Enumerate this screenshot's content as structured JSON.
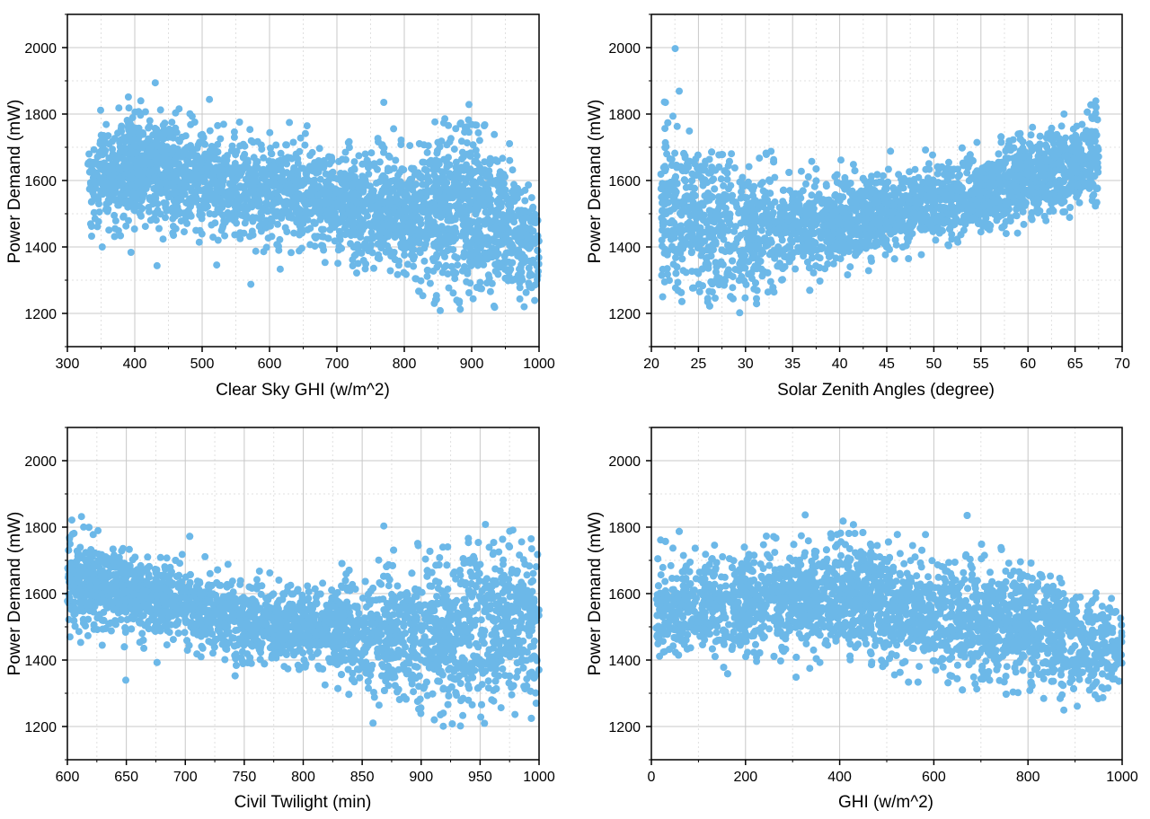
{
  "marker_color": "#6cb8e8",
  "chart_data": [
    {
      "type": "scatter",
      "xlabel": "Clear Sky GHI (w/m^2)",
      "ylabel": "Power Demand (mW)",
      "xlim": [
        300,
        1000
      ],
      "ylim": [
        1100,
        2100
      ],
      "xticks": [
        300,
        400,
        500,
        600,
        700,
        800,
        900,
        1000
      ],
      "yticks": [
        1200,
        1400,
        1600,
        1800,
        2000
      ],
      "grid": true,
      "trend": [
        [
          330,
          1610
        ],
        [
          400,
          1640
        ],
        [
          500,
          1600
        ],
        [
          600,
          1560
        ],
        [
          700,
          1530
        ],
        [
          800,
          1500
        ],
        [
          900,
          1510
        ],
        [
          1000,
          1400
        ]
      ],
      "spread": [
        [
          330,
          120
        ],
        [
          400,
          140
        ],
        [
          500,
          120
        ],
        [
          600,
          110
        ],
        [
          700,
          110
        ],
        [
          800,
          150
        ],
        [
          900,
          200
        ],
        [
          1000,
          110
        ]
      ],
      "density": [
        [
          330,
          0.4
        ],
        [
          400,
          1.0
        ],
        [
          500,
          0.8
        ],
        [
          600,
          0.7
        ],
        [
          700,
          0.75
        ],
        [
          800,
          0.9
        ],
        [
          900,
          1.0
        ],
        [
          1000,
          0.6
        ]
      ]
    },
    {
      "type": "scatter",
      "xlabel": "Solar Zenith Angles (degree)",
      "ylabel": "Power Demand (mW)",
      "xlim": [
        20,
        70
      ],
      "ylim": [
        1100,
        2100
      ],
      "xticks": [
        20,
        25,
        30,
        35,
        40,
        45,
        50,
        55,
        60,
        65,
        70
      ],
      "yticks": [
        1200,
        1400,
        1600,
        1800,
        2000
      ],
      "grid": true,
      "trend": [
        [
          21,
          1520
        ],
        [
          25,
          1480
        ],
        [
          30,
          1450
        ],
        [
          35,
          1450
        ],
        [
          40,
          1480
        ],
        [
          45,
          1500
        ],
        [
          50,
          1530
        ],
        [
          55,
          1560
        ],
        [
          60,
          1600
        ],
        [
          65,
          1640
        ],
        [
          67.5,
          1650
        ]
      ],
      "spread": [
        [
          21,
          180
        ],
        [
          25,
          190
        ],
        [
          30,
          160
        ],
        [
          35,
          120
        ],
        [
          40,
          100
        ],
        [
          45,
          90
        ],
        [
          50,
          90
        ],
        [
          55,
          90
        ],
        [
          60,
          95
        ],
        [
          65,
          110
        ],
        [
          67.5,
          120
        ]
      ],
      "density": [
        [
          21,
          1.0
        ],
        [
          25,
          0.9
        ],
        [
          30,
          0.8
        ],
        [
          35,
          0.8
        ],
        [
          40,
          0.9
        ],
        [
          45,
          0.9
        ],
        [
          50,
          0.9
        ],
        [
          55,
          0.9
        ],
        [
          60,
          1.0
        ],
        [
          65,
          1.0
        ],
        [
          67.5,
          1.0
        ]
      ]
    },
    {
      "type": "scatter",
      "xlabel": "Civil Twilight (min)",
      "ylabel": "Power Demand (mW)",
      "xlim": [
        600,
        1000
      ],
      "ylim": [
        1100,
        2100
      ],
      "xticks": [
        600,
        650,
        700,
        750,
        800,
        850,
        900,
        950,
        1000
      ],
      "yticks": [
        1200,
        1400,
        1600,
        1800,
        2000
      ],
      "grid": true,
      "trend": [
        [
          600,
          1640
        ],
        [
          650,
          1610
        ],
        [
          700,
          1560
        ],
        [
          750,
          1520
        ],
        [
          800,
          1500
        ],
        [
          850,
          1480
        ],
        [
          900,
          1470
        ],
        [
          950,
          1500
        ],
        [
          1000,
          1520
        ]
      ],
      "spread": [
        [
          600,
          120
        ],
        [
          650,
          90
        ],
        [
          700,
          90
        ],
        [
          750,
          90
        ],
        [
          800,
          90
        ],
        [
          850,
          120
        ],
        [
          900,
          170
        ],
        [
          950,
          200
        ],
        [
          1000,
          190
        ]
      ],
      "density": [
        [
          600,
          1.0
        ],
        [
          650,
          1.0
        ],
        [
          700,
          0.9
        ],
        [
          750,
          0.9
        ],
        [
          800,
          0.9
        ],
        [
          850,
          0.9
        ],
        [
          900,
          0.9
        ],
        [
          950,
          1.0
        ],
        [
          1000,
          1.0
        ]
      ]
    },
    {
      "type": "scatter",
      "xlabel": "GHI (w/m^2)",
      "ylabel": "Power Demand (mW)",
      "xlim": [
        0,
        1000
      ],
      "ylim": [
        1100,
        2100
      ],
      "xticks": [
        0,
        200,
        400,
        600,
        800,
        1000
      ],
      "yticks": [
        1200,
        1400,
        1600,
        1800,
        2000
      ],
      "grid": true,
      "trend": [
        [
          10,
          1560
        ],
        [
          200,
          1570
        ],
        [
          400,
          1600
        ],
        [
          600,
          1530
        ],
        [
          800,
          1500
        ],
        [
          1000,
          1420
        ]
      ],
      "spread": [
        [
          10,
          110
        ],
        [
          200,
          120
        ],
        [
          400,
          130
        ],
        [
          600,
          130
        ],
        [
          800,
          140
        ],
        [
          1000,
          100
        ]
      ],
      "density": [
        [
          10,
          0.7
        ],
        [
          200,
          0.9
        ],
        [
          400,
          1.0
        ],
        [
          600,
          0.9
        ],
        [
          800,
          0.9
        ],
        [
          1000,
          0.6
        ]
      ]
    }
  ]
}
